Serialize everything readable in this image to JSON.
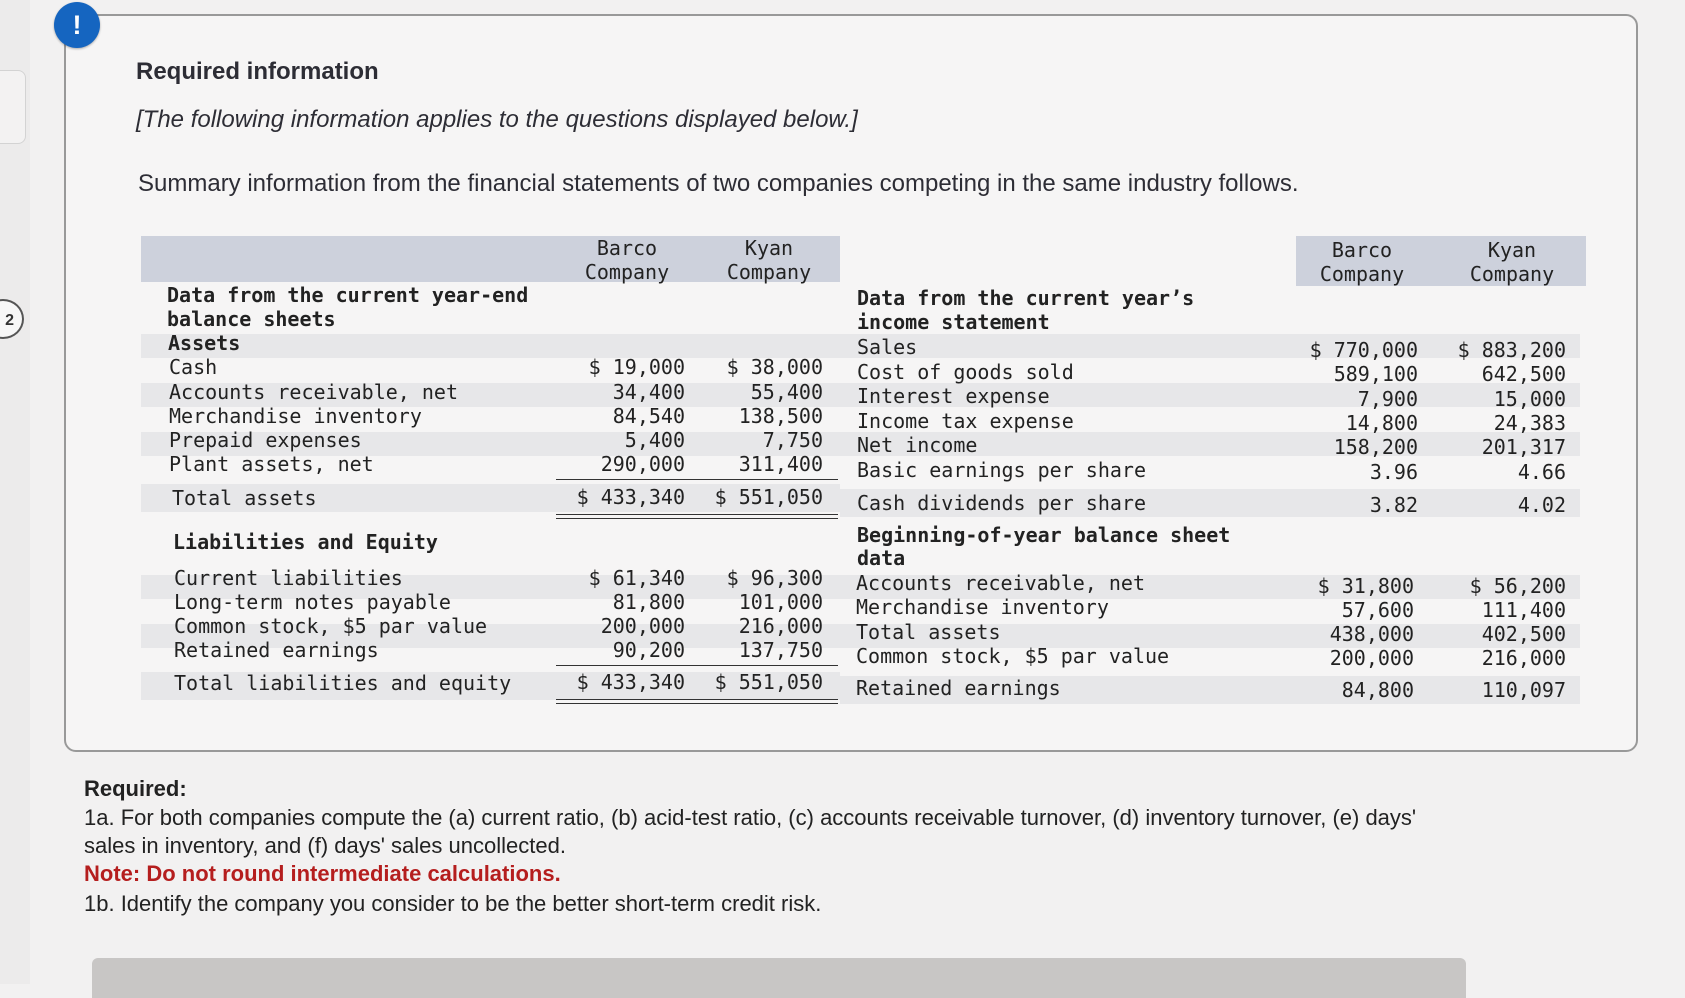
{
  "alert_symbol": "!",
  "question_number": "2",
  "header": {
    "title": "Required information",
    "subtitle": "[The following information applies to the questions displayed below.]",
    "summary": "Summary information from the financial statements of two companies competing in the same industry follows."
  },
  "balance_sheet": {
    "col1_header": [
      "Barco",
      "Company"
    ],
    "col2_header": [
      "Kyan",
      "Company"
    ],
    "section_title": [
      "Data from the current year-end",
      "balance sheets"
    ],
    "assets_label": "Assets",
    "asset_rows": [
      {
        "label": "Cash",
        "barco": "$ 19,000",
        "kyan": "$ 38,000"
      },
      {
        "label": "Accounts receivable, net",
        "barco": "34,400",
        "kyan": "55,400"
      },
      {
        "label": "Merchandise inventory",
        "barco": "84,540",
        "kyan": "138,500"
      },
      {
        "label": "Prepaid expenses",
        "barco": "5,400",
        "kyan": "7,750"
      },
      {
        "label": "Plant assets, net",
        "barco": "290,000",
        "kyan": "311,400"
      }
    ],
    "total_assets": {
      "label": "Total assets",
      "barco": "$ 433,340",
      "kyan": "$ 551,050"
    },
    "liab_label": "Liabilities and Equity",
    "liab_rows": [
      {
        "label": "Current liabilities",
        "barco": "$ 61,340",
        "kyan": "$ 96,300"
      },
      {
        "label": "Long-term notes payable",
        "barco": "81,800",
        "kyan": "101,000"
      },
      {
        "label": "Common stock, $5 par value",
        "barco": "200,000",
        "kyan": "216,000"
      },
      {
        "label": "Retained earnings",
        "barco": "90,200",
        "kyan": "137,750"
      }
    ],
    "total_liab": {
      "label": "Total liabilities and equity",
      "barco": "$ 433,340",
      "kyan": "$ 551,050"
    }
  },
  "income_statement": {
    "col1_header": [
      "Barco",
      "Company"
    ],
    "col2_header": [
      "Kyan",
      "Company"
    ],
    "section_title": [
      "Data from the current year’s",
      "income statement"
    ],
    "rows": [
      {
        "label": "Sales",
        "barco": "$ 770,000",
        "kyan": "$ 883,200"
      },
      {
        "label": "Cost of goods sold",
        "barco": "589,100",
        "kyan": "642,500"
      },
      {
        "label": "Interest expense",
        "barco": "7,900",
        "kyan": "15,000"
      },
      {
        "label": "Income tax expense",
        "barco": "14,800",
        "kyan": "24,383"
      },
      {
        "label": "Net income",
        "barco": "158,200",
        "kyan": "201,317"
      },
      {
        "label": "Basic earnings per share",
        "barco": "3.96",
        "kyan": "4.66"
      },
      {
        "label": "Cash dividends per share",
        "barco": "3.82",
        "kyan": "4.02"
      }
    ],
    "beg_title": [
      "Beginning-of-year balance sheet",
      "data"
    ],
    "beg_rows": [
      {
        "label": "Accounts receivable, net",
        "barco": "$ 31,800",
        "kyan": "$ 56,200"
      },
      {
        "label": "Merchandise inventory",
        "barco": "57,600",
        "kyan": "111,400"
      },
      {
        "label": "Total assets",
        "barco": "438,000",
        "kyan": "402,500"
      },
      {
        "label": "Common stock, $5 par value",
        "barco": "200,000",
        "kyan": "216,000"
      },
      {
        "label": "Retained earnings",
        "barco": "84,800",
        "kyan": "110,097"
      }
    ]
  },
  "required": {
    "heading": "Required:",
    "item_1a": "1a. For both companies compute the (a) current ratio, (b) acid-test ratio, (c) accounts receivable turnover, (d) inventory turnover, (e) days'",
    "item_1a_cont": "sales in inventory, and (f) days' sales uncollected.",
    "note": "Note: Do not round intermediate calculations.",
    "item_1b": "1b. Identify the company you consider to be the better short-term credit risk."
  }
}
